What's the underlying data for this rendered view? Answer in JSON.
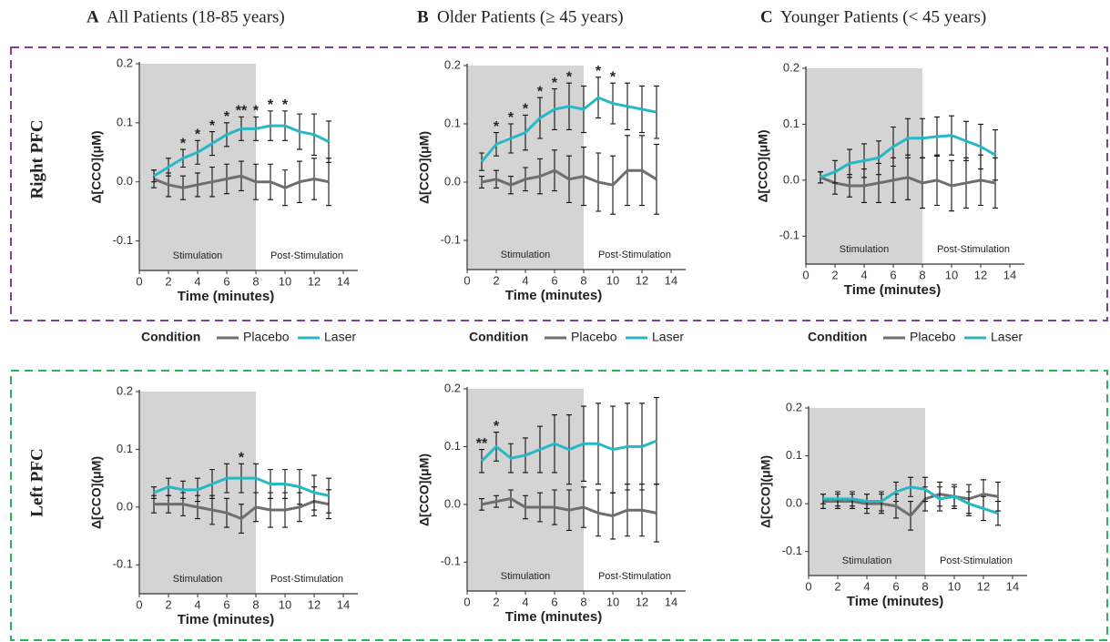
{
  "columns": [
    {
      "letter": "A",
      "title": "All Patients (18-85 years)"
    },
    {
      "letter": "B",
      "title": "Older Patients (≥ 45 years)"
    },
    {
      "letter": "C",
      "title": "Younger Patients (< 45 years)"
    }
  ],
  "rows": [
    "Right PFC",
    "Left PFC"
  ],
  "chart_data": [
    {
      "type": "line",
      "ylabel": "Δ[CCO](μM)",
      "xlabel": "Time (minutes)",
      "x": [
        1,
        2,
        3,
        4,
        5,
        6,
        7,
        8,
        9,
        10,
        11,
        12,
        13
      ],
      "xlim": [
        0,
        15
      ],
      "xticks": [
        0,
        2,
        4,
        6,
        8,
        10,
        12,
        14
      ],
      "ylim": [
        -0.15,
        0.2
      ],
      "yticks": [
        -0.1,
        {
          "value": 0,
          "label": "0.0"
        },
        0.1,
        0.2
      ],
      "regions": [
        {
          "label": "Stimulation",
          "x": [
            0,
            8
          ],
          "shaded": true
        },
        {
          "label": "Post-Stimulation",
          "x": [
            8,
            15
          ],
          "shaded": false
        }
      ],
      "series": [
        {
          "name": "Placebo",
          "color": "#6e6e6e",
          "values": [
            0.005,
            -0.005,
            -0.01,
            -0.005,
            0,
            0.005,
            0.01,
            0,
            0,
            -0.01,
            0,
            0.005,
            0
          ],
          "errors": [
            0.015,
            0.02,
            0.02,
            0.02,
            0.025,
            0.025,
            0.025,
            0.03,
            0.03,
            0.03,
            0.035,
            0.035,
            0.04
          ]
        },
        {
          "name": "Laser",
          "color": "#26b8c4",
          "values": [
            0.01,
            0.025,
            0.04,
            0.05,
            0.065,
            0.08,
            0.09,
            0.09,
            0.095,
            0.095,
            0.085,
            0.08,
            0.068
          ],
          "errors": [
            0.01,
            0.015,
            0.015,
            0.02,
            0.02,
            0.02,
            0.02,
            0.02,
            0.025,
            0.025,
            0.03,
            0.035,
            0.035
          ]
        }
      ],
      "annotations": [
        {
          "text": "*",
          "x": 3
        },
        {
          "text": "*",
          "x": 4
        },
        {
          "text": "*",
          "x": 5
        },
        {
          "text": "*",
          "x": 6
        },
        {
          "text": "**",
          "x": 7
        },
        {
          "text": "*",
          "x": 8
        },
        {
          "text": "*",
          "x": 9
        },
        {
          "text": "*",
          "x": 10
        }
      ],
      "legend_title": "Condition"
    },
    {
      "type": "line",
      "ylabel": "Δ[CCO](μM)",
      "xlabel": "Time (minutes)",
      "x": [
        1,
        2,
        3,
        4,
        5,
        6,
        7,
        8,
        9,
        10,
        11,
        12,
        13
      ],
      "xlim": [
        0,
        15
      ],
      "xticks": [
        0,
        2,
        4,
        6,
        8,
        10,
        12,
        14
      ],
      "ylim": [
        -0.15,
        0.2
      ],
      "yticks": [
        -0.1,
        {
          "value": 0,
          "label": "0.0"
        },
        0.1,
        0.2
      ],
      "regions": [
        {
          "label": "Stimulation",
          "x": [
            0,
            8
          ],
          "shaded": true
        },
        {
          "label": "Post-Stimulation",
          "x": [
            8,
            15
          ],
          "shaded": false
        }
      ],
      "series": [
        {
          "name": "Placebo",
          "color": "#6e6e6e",
          "values": [
            0,
            0.005,
            -0.005,
            0.005,
            0.01,
            0.02,
            0.005,
            0.01,
            0,
            -0.005,
            0.02,
            0.02,
            0.005
          ],
          "errors": [
            0.01,
            0.015,
            0.015,
            0.02,
            0.03,
            0.035,
            0.04,
            0.05,
            0.05,
            0.05,
            0.06,
            0.06,
            0.06
          ]
        },
        {
          "name": "Laser",
          "color": "#26b8c4",
          "values": [
            0.035,
            0.065,
            0.075,
            0.085,
            0.11,
            0.125,
            0.13,
            0.125,
            0.145,
            0.135,
            0.13,
            0.125,
            0.12
          ],
          "errors": [
            0.015,
            0.02,
            0.025,
            0.03,
            0.035,
            0.035,
            0.04,
            0.04,
            0.035,
            0.035,
            0.04,
            0.04,
            0.045
          ]
        }
      ],
      "annotations": [
        {
          "text": "*",
          "x": 2
        },
        {
          "text": "*",
          "x": 3
        },
        {
          "text": "*",
          "x": 4
        },
        {
          "text": "*",
          "x": 5
        },
        {
          "text": "*",
          "x": 6
        },
        {
          "text": "*",
          "x": 7
        },
        {
          "text": "*",
          "x": 9
        },
        {
          "text": "*",
          "x": 10
        }
      ],
      "legend_title": "Condition"
    },
    {
      "type": "line",
      "ylabel": "Δ[CCO](μM)",
      "xlabel": "Time (minutes)",
      "x": [
        1,
        2,
        3,
        4,
        5,
        6,
        7,
        8,
        9,
        10,
        11,
        12,
        13
      ],
      "xlim": [
        0,
        15
      ],
      "xticks": [
        0,
        2,
        4,
        6,
        8,
        10,
        12,
        14
      ],
      "ylim": [
        -0.15,
        0.2
      ],
      "yticks": [
        -0.1,
        {
          "value": 0,
          "label": "0.0"
        },
        0.1,
        0.2
      ],
      "regions": [
        {
          "label": "Stimulation",
          "x": [
            0,
            8
          ],
          "shaded": true
        },
        {
          "label": "Post-Stimulation",
          "x": [
            8,
            15
          ],
          "shaded": false
        }
      ],
      "series": [
        {
          "name": "Placebo",
          "color": "#6e6e6e",
          "values": [
            0.005,
            -0.005,
            -0.01,
            -0.01,
            -0.005,
            0,
            0.005,
            -0.005,
            0,
            -0.01,
            -0.005,
            0,
            -0.005
          ],
          "errors": [
            0.01,
            0.02,
            0.02,
            0.03,
            0.035,
            0.04,
            0.04,
            0.045,
            0.045,
            0.045,
            0.045,
            0.045,
            0.045
          ]
        },
        {
          "name": "Laser",
          "color": "#26b8c4",
          "values": [
            0.005,
            0.015,
            0.03,
            0.035,
            0.04,
            0.06,
            0.075,
            0.075,
            0.078,
            0.08,
            0.07,
            0.06,
            0.045
          ],
          "errors": [
            0.01,
            0.02,
            0.025,
            0.03,
            0.03,
            0.035,
            0.035,
            0.035,
            0.035,
            0.035,
            0.035,
            0.04,
            0.045
          ]
        }
      ],
      "legend_title": "Condition"
    },
    {
      "type": "line",
      "ylabel": "Δ[CCO](μM)",
      "xlabel": "Time (minutes)",
      "x": [
        1,
        2,
        3,
        4,
        5,
        6,
        7,
        8,
        9,
        10,
        11,
        12,
        13
      ],
      "xlim": [
        0,
        15
      ],
      "xticks": [
        0,
        2,
        4,
        6,
        8,
        10,
        12,
        14
      ],
      "ylim": [
        -0.15,
        0.2
      ],
      "yticks": [
        -0.1,
        {
          "value": 0,
          "label": "0.0"
        },
        0.1,
        0.2
      ],
      "regions": [
        {
          "label": "Stimulation",
          "x": [
            0,
            8
          ],
          "shaded": true
        },
        {
          "label": "Post-Stimulation",
          "x": [
            8,
            15
          ],
          "shaded": false
        }
      ],
      "series": [
        {
          "name": "Placebo",
          "color": "#6e6e6e",
          "values": [
            0.005,
            0.005,
            0.005,
            0,
            -0.005,
            -0.01,
            -0.02,
            0,
            -0.005,
            -0.005,
            0,
            0.01,
            0.005
          ],
          "errors": [
            0.015,
            0.015,
            0.02,
            0.02,
            0.025,
            0.025,
            0.025,
            0.025,
            0.03,
            0.03,
            0.025,
            0.025,
            0.025
          ]
        },
        {
          "name": "Laser",
          "color": "#26b8c4",
          "values": [
            0.025,
            0.035,
            0.03,
            0.03,
            0.04,
            0.05,
            0.05,
            0.05,
            0.04,
            0.04,
            0.035,
            0.025,
            0.02
          ],
          "errors": [
            0.01,
            0.015,
            0.015,
            0.02,
            0.025,
            0.025,
            0.025,
            0.025,
            0.025,
            0.025,
            0.03,
            0.03,
            0.03
          ]
        }
      ],
      "annotations": [
        {
          "text": "*",
          "x": 7
        }
      ]
    },
    {
      "type": "line",
      "ylabel": "Δ[CCO](μM)",
      "xlabel": "Time (minutes)",
      "x": [
        1,
        2,
        3,
        4,
        5,
        6,
        7,
        8,
        9,
        10,
        11,
        12,
        13
      ],
      "xlim": [
        0,
        15
      ],
      "xticks": [
        0,
        2,
        4,
        6,
        8,
        10,
        12,
        14
      ],
      "ylim": [
        -0.15,
        0.2
      ],
      "yticks": [
        -0.1,
        {
          "value": 0,
          "label": "0.0"
        },
        0.1,
        0.2
      ],
      "regions": [
        {
          "label": "Stimulation",
          "x": [
            0,
            8
          ],
          "shaded": true
        },
        {
          "label": "Post-Stimulation",
          "x": [
            8,
            15
          ],
          "shaded": false
        }
      ],
      "series": [
        {
          "name": "Placebo",
          "color": "#6e6e6e",
          "values": [
            0,
            0.005,
            0.01,
            -0.005,
            -0.005,
            -0.005,
            -0.01,
            -0.005,
            -0.015,
            -0.02,
            -0.01,
            -0.01,
            -0.015
          ],
          "errors": [
            0.01,
            0.01,
            0.015,
            0.02,
            0.025,
            0.03,
            0.035,
            0.035,
            0.04,
            0.04,
            0.045,
            0.045,
            0.05
          ]
        },
        {
          "name": "Laser",
          "color": "#26b8c4",
          "values": [
            0.075,
            0.1,
            0.08,
            0.085,
            0.095,
            0.105,
            0.095,
            0.105,
            0.105,
            0.095,
            0.1,
            0.1,
            0.11
          ],
          "errors": [
            0.02,
            0.025,
            0.025,
            0.03,
            0.04,
            0.05,
            0.06,
            0.065,
            0.07,
            0.075,
            0.075,
            0.075,
            0.075
          ]
        }
      ],
      "annotations": [
        {
          "text": "**",
          "x": 1
        },
        {
          "text": "*",
          "x": 2
        }
      ]
    },
    {
      "type": "line",
      "ylabel": "Δ[CCO](μM)",
      "xlabel": "Time (minutes)",
      "x": [
        1,
        2,
        3,
        4,
        5,
        6,
        7,
        8,
        9,
        10,
        11,
        12,
        13
      ],
      "xlim": [
        0,
        15
      ],
      "xticks": [
        0,
        2,
        4,
        6,
        8,
        10,
        12,
        14
      ],
      "ylim": [
        -0.15,
        0.2
      ],
      "yticks": [
        -0.1,
        {
          "value": 0,
          "label": "0.0"
        },
        0.1,
        0.2
      ],
      "regions": [
        {
          "label": "Stimulation",
          "x": [
            0,
            8
          ],
          "shaded": true
        },
        {
          "label": "Post-Stimulation",
          "x": [
            8,
            15
          ],
          "shaded": false
        }
      ],
      "series": [
        {
          "name": "Placebo",
          "color": "#6e6e6e",
          "values": [
            0.005,
            0.005,
            0.005,
            0,
            0,
            -0.005,
            -0.025,
            0.01,
            0.02,
            0.015,
            0.01,
            0.02,
            0.015
          ],
          "errors": [
            0.015,
            0.015,
            0.015,
            0.02,
            0.02,
            0.025,
            0.03,
            0.025,
            0.025,
            0.025,
            0.03,
            0.03,
            0.03
          ]
        },
        {
          "name": "Laser",
          "color": "#26b8c4",
          "values": [
            0.01,
            0.01,
            0.01,
            0.005,
            0.005,
            0.025,
            0.035,
            0.03,
            0.01,
            0.015,
            0,
            -0.01,
            -0.02
          ],
          "errors": [
            0.01,
            0.015,
            0.015,
            0.015,
            0.02,
            0.02,
            0.02,
            0.025,
            0.025,
            0.02,
            0.025,
            0.025,
            0.025
          ]
        }
      ]
    }
  ]
}
